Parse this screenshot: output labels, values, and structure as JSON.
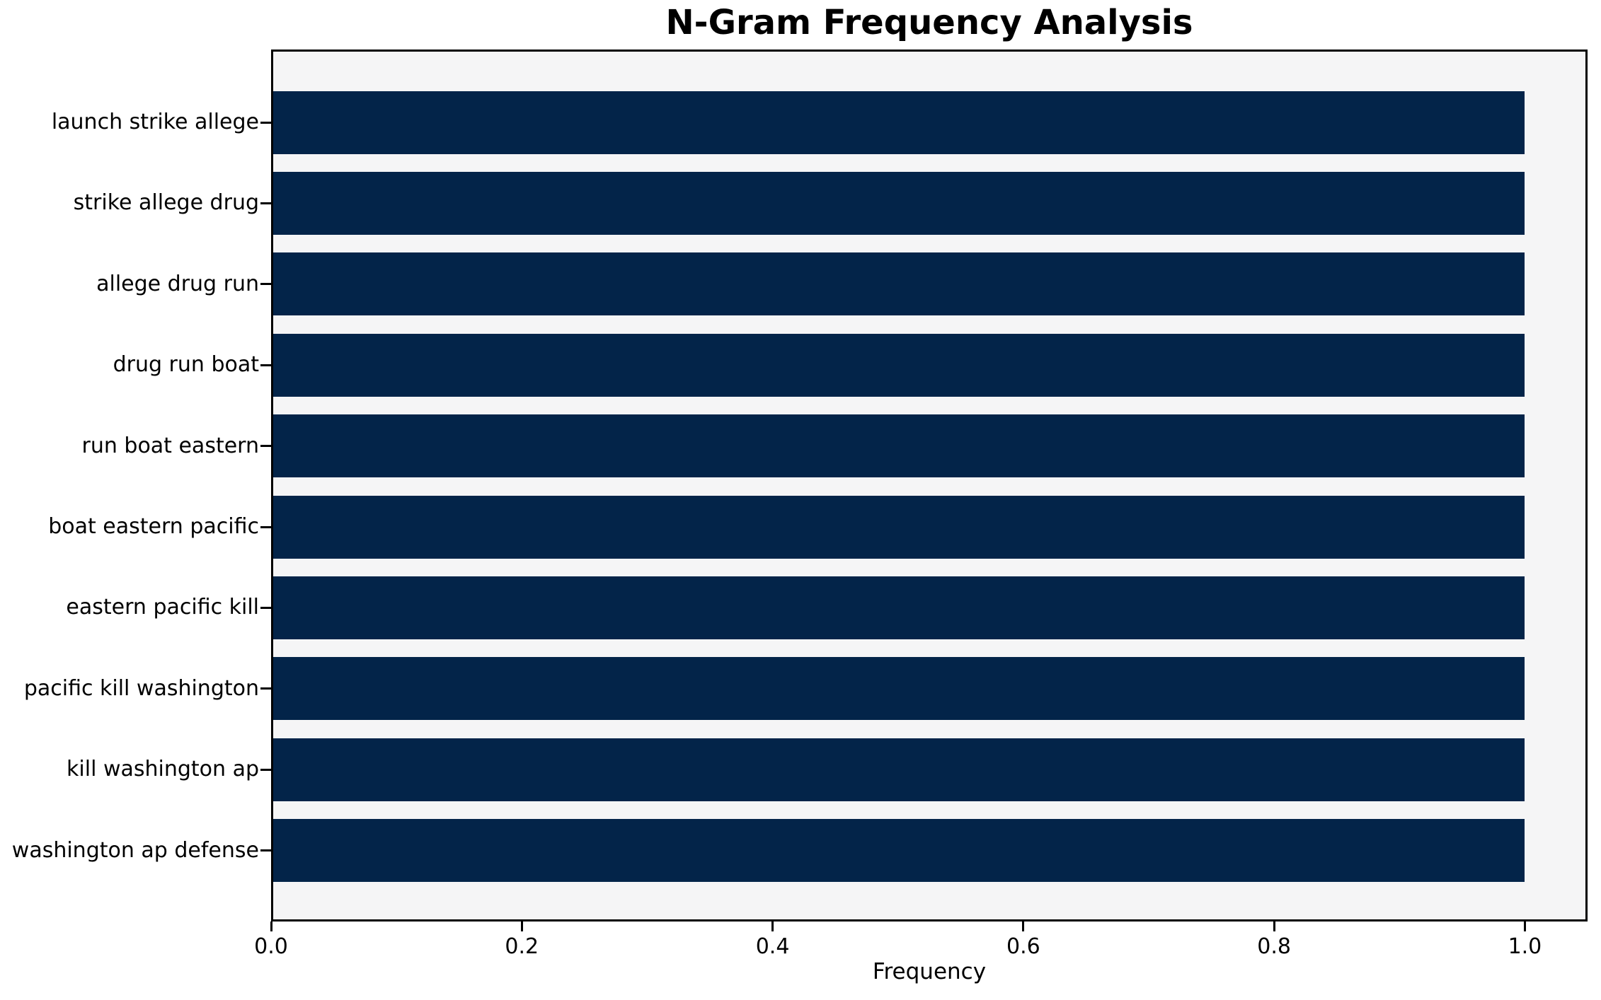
{
  "chart_data": {
    "type": "bar",
    "orientation": "horizontal",
    "title": "N-Gram Frequency Analysis",
    "xlabel": "Frequency",
    "ylabel": "",
    "categories": [
      "launch strike allege",
      "strike allege drug",
      "allege drug run",
      "drug run boat",
      "run boat eastern",
      "boat eastern pacific",
      "eastern pacific kill",
      "pacific kill washington",
      "kill washington ap",
      "washington ap defense"
    ],
    "values": [
      1.0,
      1.0,
      1.0,
      1.0,
      1.0,
      1.0,
      1.0,
      1.0,
      1.0,
      1.0
    ],
    "xlim": [
      0,
      1.05
    ],
    "xticks": [
      0.0,
      0.2,
      0.4,
      0.6,
      0.8,
      1.0
    ],
    "xtick_labels": [
      "0.0",
      "0.2",
      "0.4",
      "0.6",
      "0.8",
      "1.0"
    ],
    "grid": false,
    "legend": null,
    "colors": {
      "bar": "#032449",
      "plot_background": "#f5f5f6",
      "figure_background": "#ffffff",
      "frame": "#000000",
      "text": "#000000"
    }
  }
}
